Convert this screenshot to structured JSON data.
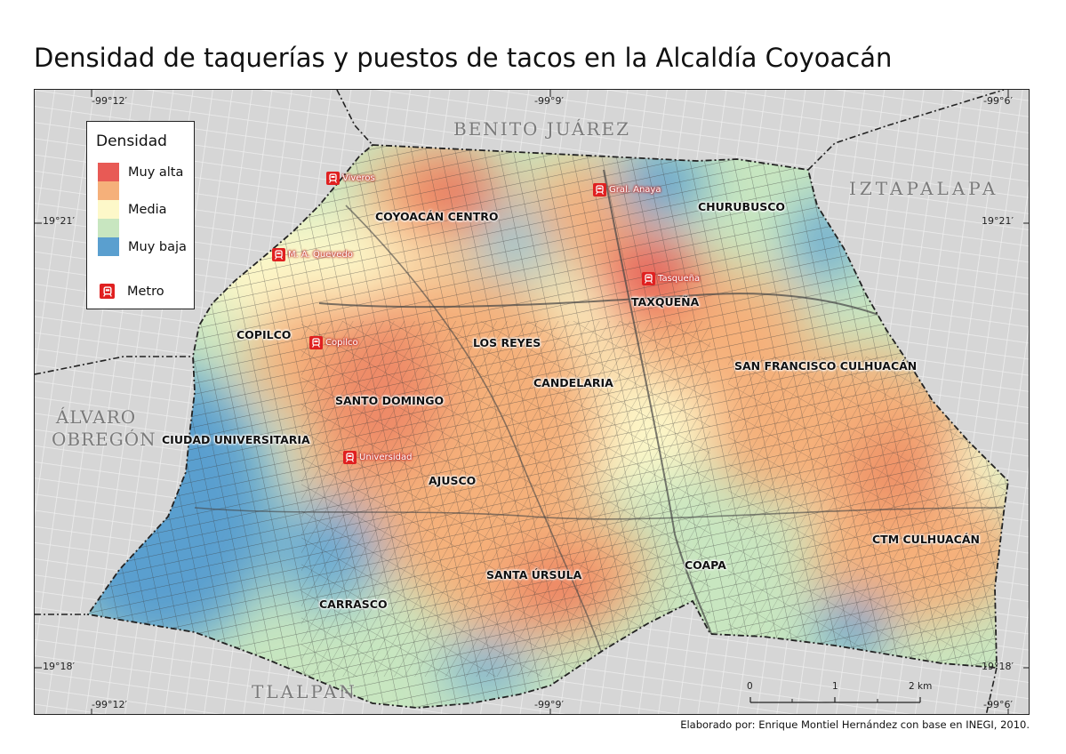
{
  "title": "Densidad de taquerías y puestos de tacos en la Alcaldía Coyoacán",
  "legend": {
    "title": "Densidad",
    "items": [
      {
        "label": "Muy alta",
        "color": "#e85a55"
      },
      {
        "label": "",
        "color": "#f5b07a"
      },
      {
        "label": "Media",
        "color": "#fdf8c9"
      },
      {
        "label": "",
        "color": "#c8e6c0"
      },
      {
        "label": "Muy baja",
        "color": "#5a9fcf"
      }
    ],
    "metro_label": "Metro"
  },
  "coordinates": {
    "top": [
      "-99°12′",
      "-99°9′",
      "-99°6′"
    ],
    "bottom": [
      "-99°12′",
      "-99°9′",
      "-99°6′"
    ],
    "left": [
      "19°21′",
      "19°18′"
    ],
    "right": [
      "19°21′",
      "19°18′"
    ]
  },
  "districts": {
    "benito_juarez": "BENITO JUÁREZ",
    "iztapalapa": "IZTAPALAPA",
    "alvaro_obregon": "ÁLVARO OBREGÓN",
    "tlalpan": "TLALPAN"
  },
  "neighborhoods": {
    "coyoacan_centro": "COYOACÁN CENTRO",
    "churubusco": "CHURUBUSCO",
    "taxquena": "TAXQUEÑA",
    "copilco": "COPILCO",
    "los_reyes": "LOS REYES",
    "san_francisco": "SAN FRANCISCO CULHUACÁN",
    "candelaria": "CANDELARIA",
    "santo_domingo": "SANTO DOMINGO",
    "ciudad_universitaria": "CIUDAD UNIVERSITARIA",
    "ajusco": "AJUSCO",
    "ctm_culhuacan": "CTM CULHUACÁN",
    "coapa": "COAPA",
    "santa_ursula": "SANTA ÚRSULA",
    "carrasco": "CARRASCO"
  },
  "metro_stations": {
    "viveros": "Viveros",
    "gral_anaya": "Gral. Anaya",
    "m_a_quevedo": "M. A. Quevedo",
    "tasquena": "Tasqueña",
    "copilco": "Copilco",
    "universidad": "Universidad"
  },
  "scale": {
    "labels": [
      "0",
      "1",
      "2 km"
    ]
  },
  "credit": "Elaborado por: Enrique Montiel Hernández con base en INEGI, 2010.",
  "colors": {
    "very_high": "#e85a55",
    "high": "#f5b07a",
    "medium": "#fdf8c9",
    "low": "#c8e6c0",
    "very_low": "#5a9fcf",
    "outside": "#d9d9d9",
    "metro": "#e02020"
  }
}
